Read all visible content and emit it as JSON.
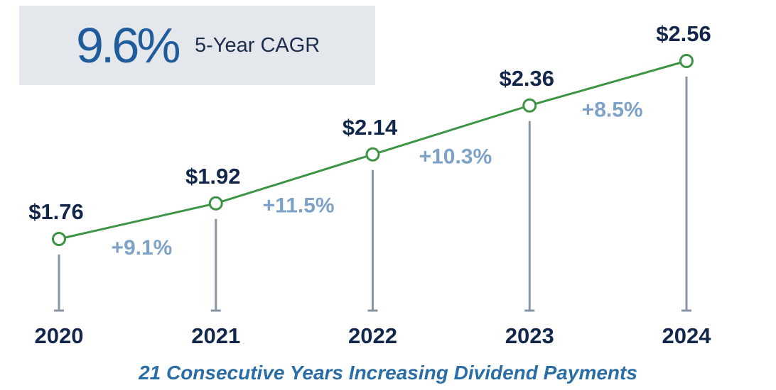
{
  "cagr": {
    "value": "9.6%",
    "label": "5-Year CAGR"
  },
  "footnote": "21 Consecutive Years Increasing Dividend Payments",
  "colors": {
    "line": "#3d9445",
    "value_label": "#13274a",
    "growth_label": "#7ea2c7",
    "stem": "#8795a5",
    "year_label": "#13274a"
  },
  "chart_data": {
    "type": "line",
    "categories": [
      "2020",
      "2021",
      "2022",
      "2023",
      "2024"
    ],
    "values": [
      1.76,
      1.92,
      2.14,
      2.36,
      2.56
    ],
    "value_labels": [
      "$1.76",
      "$1.92",
      "$2.14",
      "$2.36",
      "$2.56"
    ],
    "growth_labels": [
      "+9.1%",
      "+11.5%",
      "+10.3%",
      "+8.5%"
    ],
    "title": "",
    "xlabel": "",
    "ylabel": "",
    "grid": false,
    "legend": "none"
  }
}
